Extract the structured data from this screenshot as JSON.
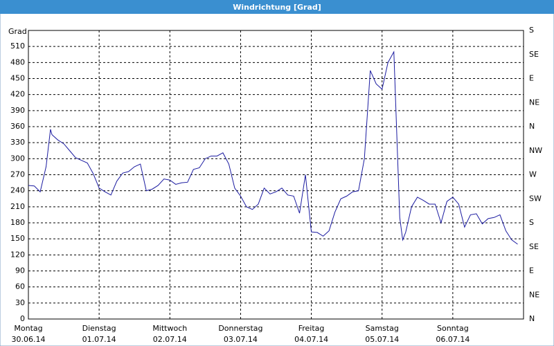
{
  "chart_data": {
    "type": "line",
    "title": "Windrichtung [Grad]",
    "y_label": "Grad",
    "x": [
      0,
      2,
      4,
      6,
      7.5,
      8,
      10,
      12,
      14,
      16,
      18,
      20,
      22,
      24,
      26,
      28,
      30,
      32,
      34,
      36,
      38,
      40,
      42,
      44,
      46,
      48,
      50,
      52,
      54,
      56,
      58,
      60,
      62,
      64,
      66,
      68,
      70,
      72,
      74,
      76,
      78,
      80,
      82,
      84,
      86,
      88,
      90,
      92,
      94,
      96,
      98,
      100,
      102,
      104,
      106,
      108,
      110,
      112,
      114,
      116,
      118,
      120,
      122,
      124,
      126,
      127,
      128,
      130,
      132,
      134,
      136,
      138,
      140,
      142,
      144,
      146,
      148,
      150,
      152,
      154,
      156,
      158,
      160,
      162,
      164,
      166
    ],
    "series": [
      {
        "name": "Windrichtung",
        "color": "#1a1aa0",
        "values": [
          250,
          249,
          238,
          285,
          355,
          345,
          335,
          328,
          315,
          302,
          297,
          292,
          272,
          245,
          238,
          232,
          258,
          273,
          276,
          285,
          290,
          240,
          243,
          250,
          262,
          260,
          252,
          255,
          256,
          280,
          283,
          300,
          305,
          305,
          311,
          290,
          245,
          230,
          210,
          205,
          215,
          245,
          234,
          238,
          245,
          232,
          230,
          198,
          270,
          163,
          162,
          155,
          165,
          200,
          225,
          230,
          238,
          240,
          300,
          465,
          440,
          430,
          480,
          500,
          190,
          148,
          162,
          210,
          228,
          222,
          215,
          215,
          180,
          220,
          228,
          215,
          172,
          195,
          197,
          178,
          188,
          190,
          195,
          165,
          148,
          140
        ]
      }
    ],
    "xlim": [
      0,
      168
    ],
    "xticks": [
      {
        "value": 0,
        "label": "Montag"
      },
      {
        "value": 24,
        "label": "Dienstag"
      },
      {
        "value": 48,
        "label": "Mittwoch"
      },
      {
        "value": 72,
        "label": "Donnerstag"
      },
      {
        "value": 96,
        "label": "Freitag"
      },
      {
        "value": 120,
        "label": "Samstag"
      },
      {
        "value": 144,
        "label": "Sonntag"
      }
    ],
    "xtick_dates": [
      "30.06.14",
      "01.07.14",
      "02.07.14",
      "03.07.14",
      "04.07.14",
      "05.07.14",
      "06.07.14"
    ],
    "ylim": [
      0,
      540
    ],
    "yticks": [
      0,
      30,
      60,
      90,
      120,
      150,
      180,
      210,
      240,
      270,
      300,
      330,
      360,
      390,
      420,
      450,
      480,
      510
    ],
    "y2lim": [
      0,
      540
    ],
    "y2ticks": [
      {
        "value": 0,
        "label": "N"
      },
      {
        "value": 45,
        "label": "NE"
      },
      {
        "value": 90,
        "label": "E"
      },
      {
        "value": 135,
        "label": "SE"
      },
      {
        "value": 180,
        "label": "S"
      },
      {
        "value": 225,
        "label": "SW"
      },
      {
        "value": 270,
        "label": "W"
      },
      {
        "value": 315,
        "label": "NW"
      },
      {
        "value": 360,
        "label": "N"
      },
      {
        "value": 405,
        "label": "NE"
      },
      {
        "value": 450,
        "label": "E"
      },
      {
        "value": 495,
        "label": "SE"
      },
      {
        "value": 540,
        "label": "S"
      }
    ],
    "grid": true
  }
}
